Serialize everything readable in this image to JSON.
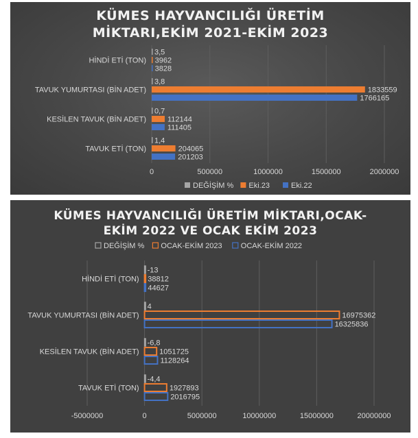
{
  "chart_data": [
    {
      "type": "bar",
      "orientation": "horizontal",
      "title_lines": [
        "KÜMES HAYVANCILIĞI ÜRETİM",
        "MİKTARI,EKİM 2021-EKİM 2023"
      ],
      "categories": [
        "TAVUK ETİ (TON)",
        "KESİLEN TAVUK (BİN ADET)",
        "TAVUK YUMURTASI (BİN ADET)",
        "HİNDİ ETİ (TON)"
      ],
      "series": [
        {
          "name": "DEĞİŞİM %",
          "values": [
            1.4,
            0.7,
            3.8,
            3.5
          ],
          "labels": [
            "1,4",
            "0,7",
            "3,8",
            "3,5"
          ],
          "color": "#a5a5a5"
        },
        {
          "name": "Eki.23",
          "values": [
            204065,
            112144,
            1833559,
            3962
          ],
          "labels": [
            "204065",
            "112144",
            "1833559",
            "3962"
          ],
          "color": "#ed7d31"
        },
        {
          "name": "Eki.22",
          "values": [
            201203,
            111405,
            1766165,
            3828
          ],
          "labels": [
            "201203",
            "111405",
            "1766165",
            "3828"
          ],
          "color": "#4472c4"
        }
      ],
      "legend_order": [
        0,
        1,
        2
      ],
      "xlim": [
        0,
        2000000
      ],
      "xticks": [
        0,
        500000,
        1000000,
        1500000,
        2000000
      ],
      "xtick_labels": [
        "0",
        "500000",
        "1000000",
        "1500000",
        "2000000"
      ],
      "legend": "bottom",
      "grid": true,
      "bar_style": "filled"
    },
    {
      "type": "bar",
      "orientation": "horizontal",
      "title_lines": [
        "KÜMES HAYVANCILIĞI ÜRETİM MİKTARI,OCAK-",
        "EKİM 2022 VE OCAK EKİM 2023"
      ],
      "categories": [
        "TAVUK ETİ (TON)",
        "KESİLEN TAVUK (BİN ADET)",
        "TAVUK YUMURTASI (BİN ADET)",
        "HİNDİ ETİ (TON)"
      ],
      "series": [
        {
          "name": "DEĞİŞİM %",
          "values": [
            -4.4,
            -6.8,
            4,
            -13
          ],
          "labels": [
            "-4,4",
            "-6,8",
            "4",
            "-13"
          ],
          "color": "#a5a5a5"
        },
        {
          "name": "OCAK-EKİM 2023",
          "values": [
            1927893,
            1051725,
            16975362,
            38812
          ],
          "labels": [
            "1927893",
            "1051725",
            "16975362",
            "38812"
          ],
          "color": "#ed7d31"
        },
        {
          "name": "OCAK-EKİM 2022",
          "values": [
            2016795,
            1128264,
            16325836,
            44627
          ],
          "labels": [
            "2016795",
            "1128264",
            "16325836",
            "44627"
          ],
          "color": "#4472c4"
        }
      ],
      "legend_order": [
        0,
        1,
        2
      ],
      "xlim": [
        -5000000,
        20000000
      ],
      "xticks": [
        -5000000,
        0,
        5000000,
        10000000,
        15000000,
        20000000
      ],
      "xtick_labels": [
        "-5000000",
        "0",
        "5000000",
        "10000000",
        "15000000",
        "20000000"
      ],
      "legend": "top",
      "grid": true,
      "bar_style": "outline"
    }
  ]
}
